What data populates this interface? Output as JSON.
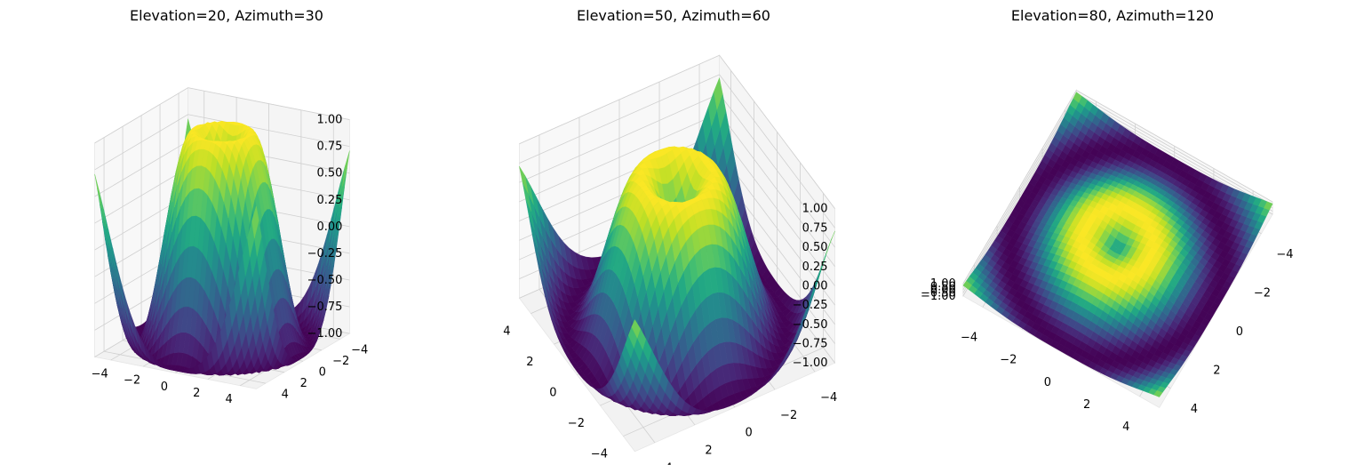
{
  "chart_data": [
    {
      "type": "surface",
      "title": "Elevation=20, Azimuth=30",
      "elevation": 20,
      "azimuth": 30,
      "function": "sin(sqrt(x^2 + y^2))",
      "colormap": "viridis",
      "x_range": [
        -5,
        5
      ],
      "y_range": [
        -5,
        5
      ],
      "zlim": [
        -1.0,
        1.0
      ],
      "x_ticks": [
        "−4",
        "−2",
        "0",
        "2",
        "4"
      ],
      "y_ticks": [
        "−4",
        "−2",
        "0",
        "2",
        "4"
      ],
      "z_ticks": [
        "1.00",
        "0.75",
        "0.50",
        "0.25",
        "0.00",
        "−0.25",
        "−0.50",
        "−0.75",
        "−1.00"
      ],
      "grid": true
    },
    {
      "type": "surface",
      "title": "Elevation=50, Azimuth=60",
      "elevation": 50,
      "azimuth": 60,
      "function": "sin(sqrt(x^2 + y^2))",
      "colormap": "viridis",
      "x_range": [
        -5,
        5
      ],
      "y_range": [
        -5,
        5
      ],
      "zlim": [
        -1.0,
        1.0
      ],
      "x_ticks": [
        "−4",
        "−2",
        "0",
        "2",
        "4"
      ],
      "y_ticks": [
        "4",
        "2",
        "0",
        "−2",
        "−4"
      ],
      "z_ticks": [
        "1.00",
        "0.75",
        "0.50",
        "0.25",
        "0.00",
        "−0.25",
        "−0.50",
        "−0.75",
        "−1.00"
      ],
      "grid": true
    },
    {
      "type": "surface",
      "title": "Elevation=80, Azimuth=120",
      "elevation": 80,
      "azimuth": 120,
      "function": "sin(sqrt(x^2 + y^2))",
      "colormap": "viridis",
      "x_range": [
        -5,
        5
      ],
      "y_range": [
        -5,
        5
      ],
      "zlim": [
        -1.0,
        1.0
      ],
      "x_ticks": [
        "4",
        "2",
        "0",
        "−2",
        "−4"
      ],
      "y_ticks": [
        "−4",
        "−2",
        "0",
        "2",
        "4"
      ],
      "z_ticks": [
        "1.00",
        "0.50",
        "0.00",
        "−0.50",
        "−1.00"
      ],
      "grid": true
    }
  ]
}
